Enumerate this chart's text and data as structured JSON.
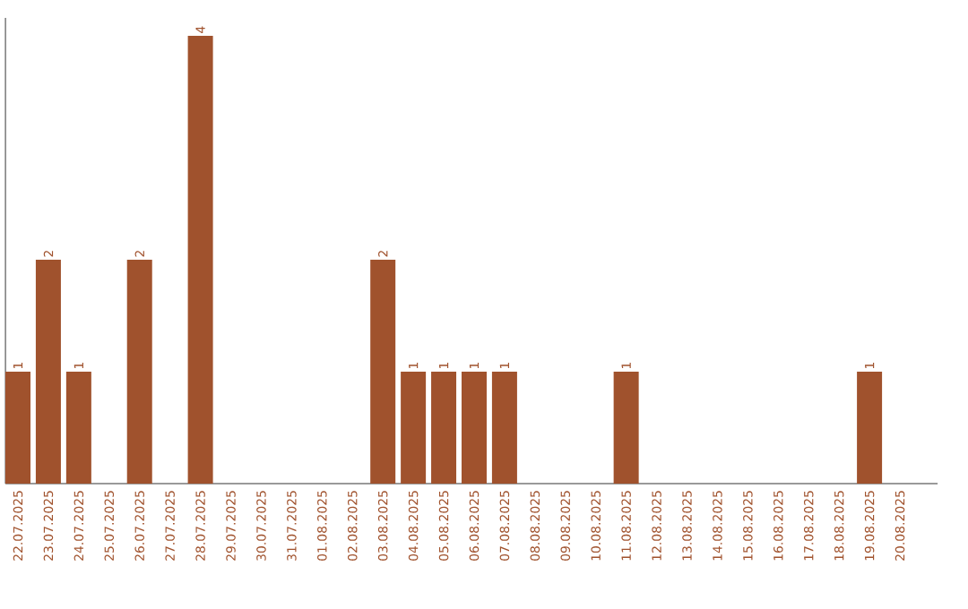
{
  "chart_data": {
    "type": "bar",
    "color": "#a0522d",
    "tick_labels": "x",
    "categories": [
      "22.07.2025",
      "23.07.2025",
      "24.07.2025",
      "25.07.2025",
      "26.07.2025",
      "27.07.2025",
      "28.07.2025",
      "29.07.2025",
      "30.07.2025",
      "31.07.2025",
      "01.08.2025",
      "02.08.2025",
      "03.08.2025",
      "04.08.2025",
      "05.08.2025",
      "06.08.2025",
      "07.08.2025",
      "08.08.2025",
      "09.08.2025",
      "10.08.2025",
      "11.08.2025",
      "12.08.2025",
      "13.08.2025",
      "14.08.2025",
      "15.08.2025",
      "16.08.2025",
      "17.08.2025",
      "18.08.2025",
      "19.08.2025",
      "20.08.2025"
    ],
    "values": [
      1,
      2,
      1,
      0,
      2,
      0,
      4,
      0,
      0,
      0,
      0,
      0,
      2,
      1,
      1,
      1,
      1,
      0,
      0,
      0,
      1,
      0,
      0,
      0,
      0,
      0,
      0,
      0,
      1,
      0
    ],
    "value_labels": [
      "1",
      "2",
      "1",
      null,
      "2",
      null,
      "4",
      null,
      null,
      null,
      null,
      null,
      "2",
      "1",
      "1",
      "1",
      "1",
      null,
      null,
      null,
      "1",
      null,
      null,
      null,
      null,
      null,
      null,
      null,
      "1",
      null
    ]
  }
}
